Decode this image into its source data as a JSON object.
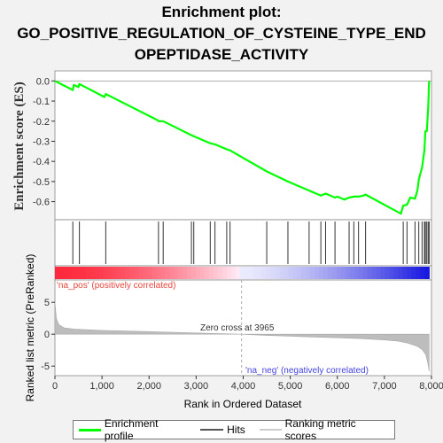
{
  "title_lines": [
    "Enrichment plot:",
    "GO_POSITIVE_REGULATION_OF_CYSTEINE_TYPE_END",
    "OPEPTIDASE_ACTIVITY"
  ],
  "legend": {
    "items": [
      {
        "label": "Enrichment profile",
        "color": "#00ff00"
      },
      {
        "label": "Hits",
        "color": "#555555"
      },
      {
        "label": "Ranking metric scores",
        "color": "#cccccc"
      }
    ]
  },
  "chart_data": [
    {
      "type": "line",
      "ylabel": "Enrichment score (ES)",
      "xlim": [
        0,
        8000
      ],
      "ylim": [
        -0.69,
        0.05
      ],
      "yticks": [
        0.0,
        -0.1,
        -0.2,
        -0.3,
        -0.4,
        -0.5,
        -0.6
      ],
      "ytick_labels": [
        "0.0",
        "-0.1",
        "-0.2",
        "-0.3",
        "-0.4",
        "-0.5",
        "-0.6"
      ],
      "color": "#00ff00",
      "series": [
        {
          "x": [
            0,
            380,
            400,
            500,
            520,
            1050,
            1080,
            2180,
            2200,
            2300,
            2900,
            2950,
            3300,
            3400,
            3650,
            3720,
            4500,
            4950,
            5400,
            5650,
            5750,
            5950,
            6000,
            6150,
            6250,
            6350,
            6450,
            6550,
            6600,
            7350,
            7400,
            7480,
            7550,
            7650,
            7700,
            7730,
            7800,
            7850,
            7870,
            7900,
            7930,
            7950
          ],
          "y": [
            0.0,
            -0.045,
            -0.02,
            -0.03,
            -0.015,
            -0.08,
            -0.065,
            -0.195,
            -0.2,
            -0.2,
            -0.27,
            -0.275,
            -0.31,
            -0.315,
            -0.34,
            -0.345,
            -0.45,
            -0.5,
            -0.545,
            -0.57,
            -0.56,
            -0.58,
            -0.575,
            -0.59,
            -0.58,
            -0.575,
            -0.575,
            -0.57,
            -0.565,
            -0.66,
            -0.62,
            -0.615,
            -0.58,
            -0.585,
            -0.545,
            -0.49,
            -0.43,
            -0.345,
            -0.25,
            -0.25,
            -0.135,
            0.0
          ]
        }
      ]
    },
    {
      "type": "scatter",
      "name": "Hits",
      "hits_x": [
        380,
        520,
        1080,
        2200,
        2300,
        2900,
        2950,
        3300,
        3400,
        3650,
        3720,
        4500,
        4950,
        5400,
        5650,
        5750,
        5950,
        6250,
        6350,
        6450,
        6600,
        7400,
        7480,
        7650,
        7730,
        7800,
        7850,
        7870,
        7900,
        7930,
        7950
      ]
    },
    {
      "type": "heatmap",
      "labels": {
        "pos": "'na_pos' (positively correlated)",
        "neg": "'na_neg' (negatively correlated)"
      }
    },
    {
      "type": "area",
      "ylabel": "Ranked list metric (PreRanked)",
      "xlabel": "Rank in Ordered Dataset",
      "xlim": [
        0,
        8000
      ],
      "ylim": [
        -6.5,
        8.5
      ],
      "yticks": [
        5,
        0,
        -5
      ],
      "xticks": [
        0,
        1000,
        2000,
        3000,
        4000,
        5000,
        6000,
        7000,
        8000
      ],
      "xtick_labels": [
        "0",
        "1,000",
        "2,000",
        "3,000",
        "4,000",
        "5,000",
        "6,000",
        "7,000",
        "8,000"
      ],
      "zero_cross": 3965,
      "zero_cross_label": "Zero cross at 3965",
      "x": [
        0,
        30,
        80,
        200,
        400,
        700,
        1000,
        1500,
        2000,
        2500,
        3000,
        3500,
        3965,
        4500,
        5000,
        5500,
        6000,
        6500,
        7000,
        7300,
        7500,
        7700,
        7800,
        7880,
        7920,
        7950
      ],
      "values": [
        5.0,
        2.5,
        1.5,
        1.0,
        0.8,
        0.7,
        0.6,
        0.5,
        0.4,
        0.3,
        0.2,
        0.1,
        0.0,
        -0.2,
        -0.3,
        -0.45,
        -0.55,
        -0.7,
        -0.9,
        -1.1,
        -1.4,
        -1.9,
        -2.4,
        -3.2,
        -4.5,
        -5.8
      ]
    }
  ]
}
